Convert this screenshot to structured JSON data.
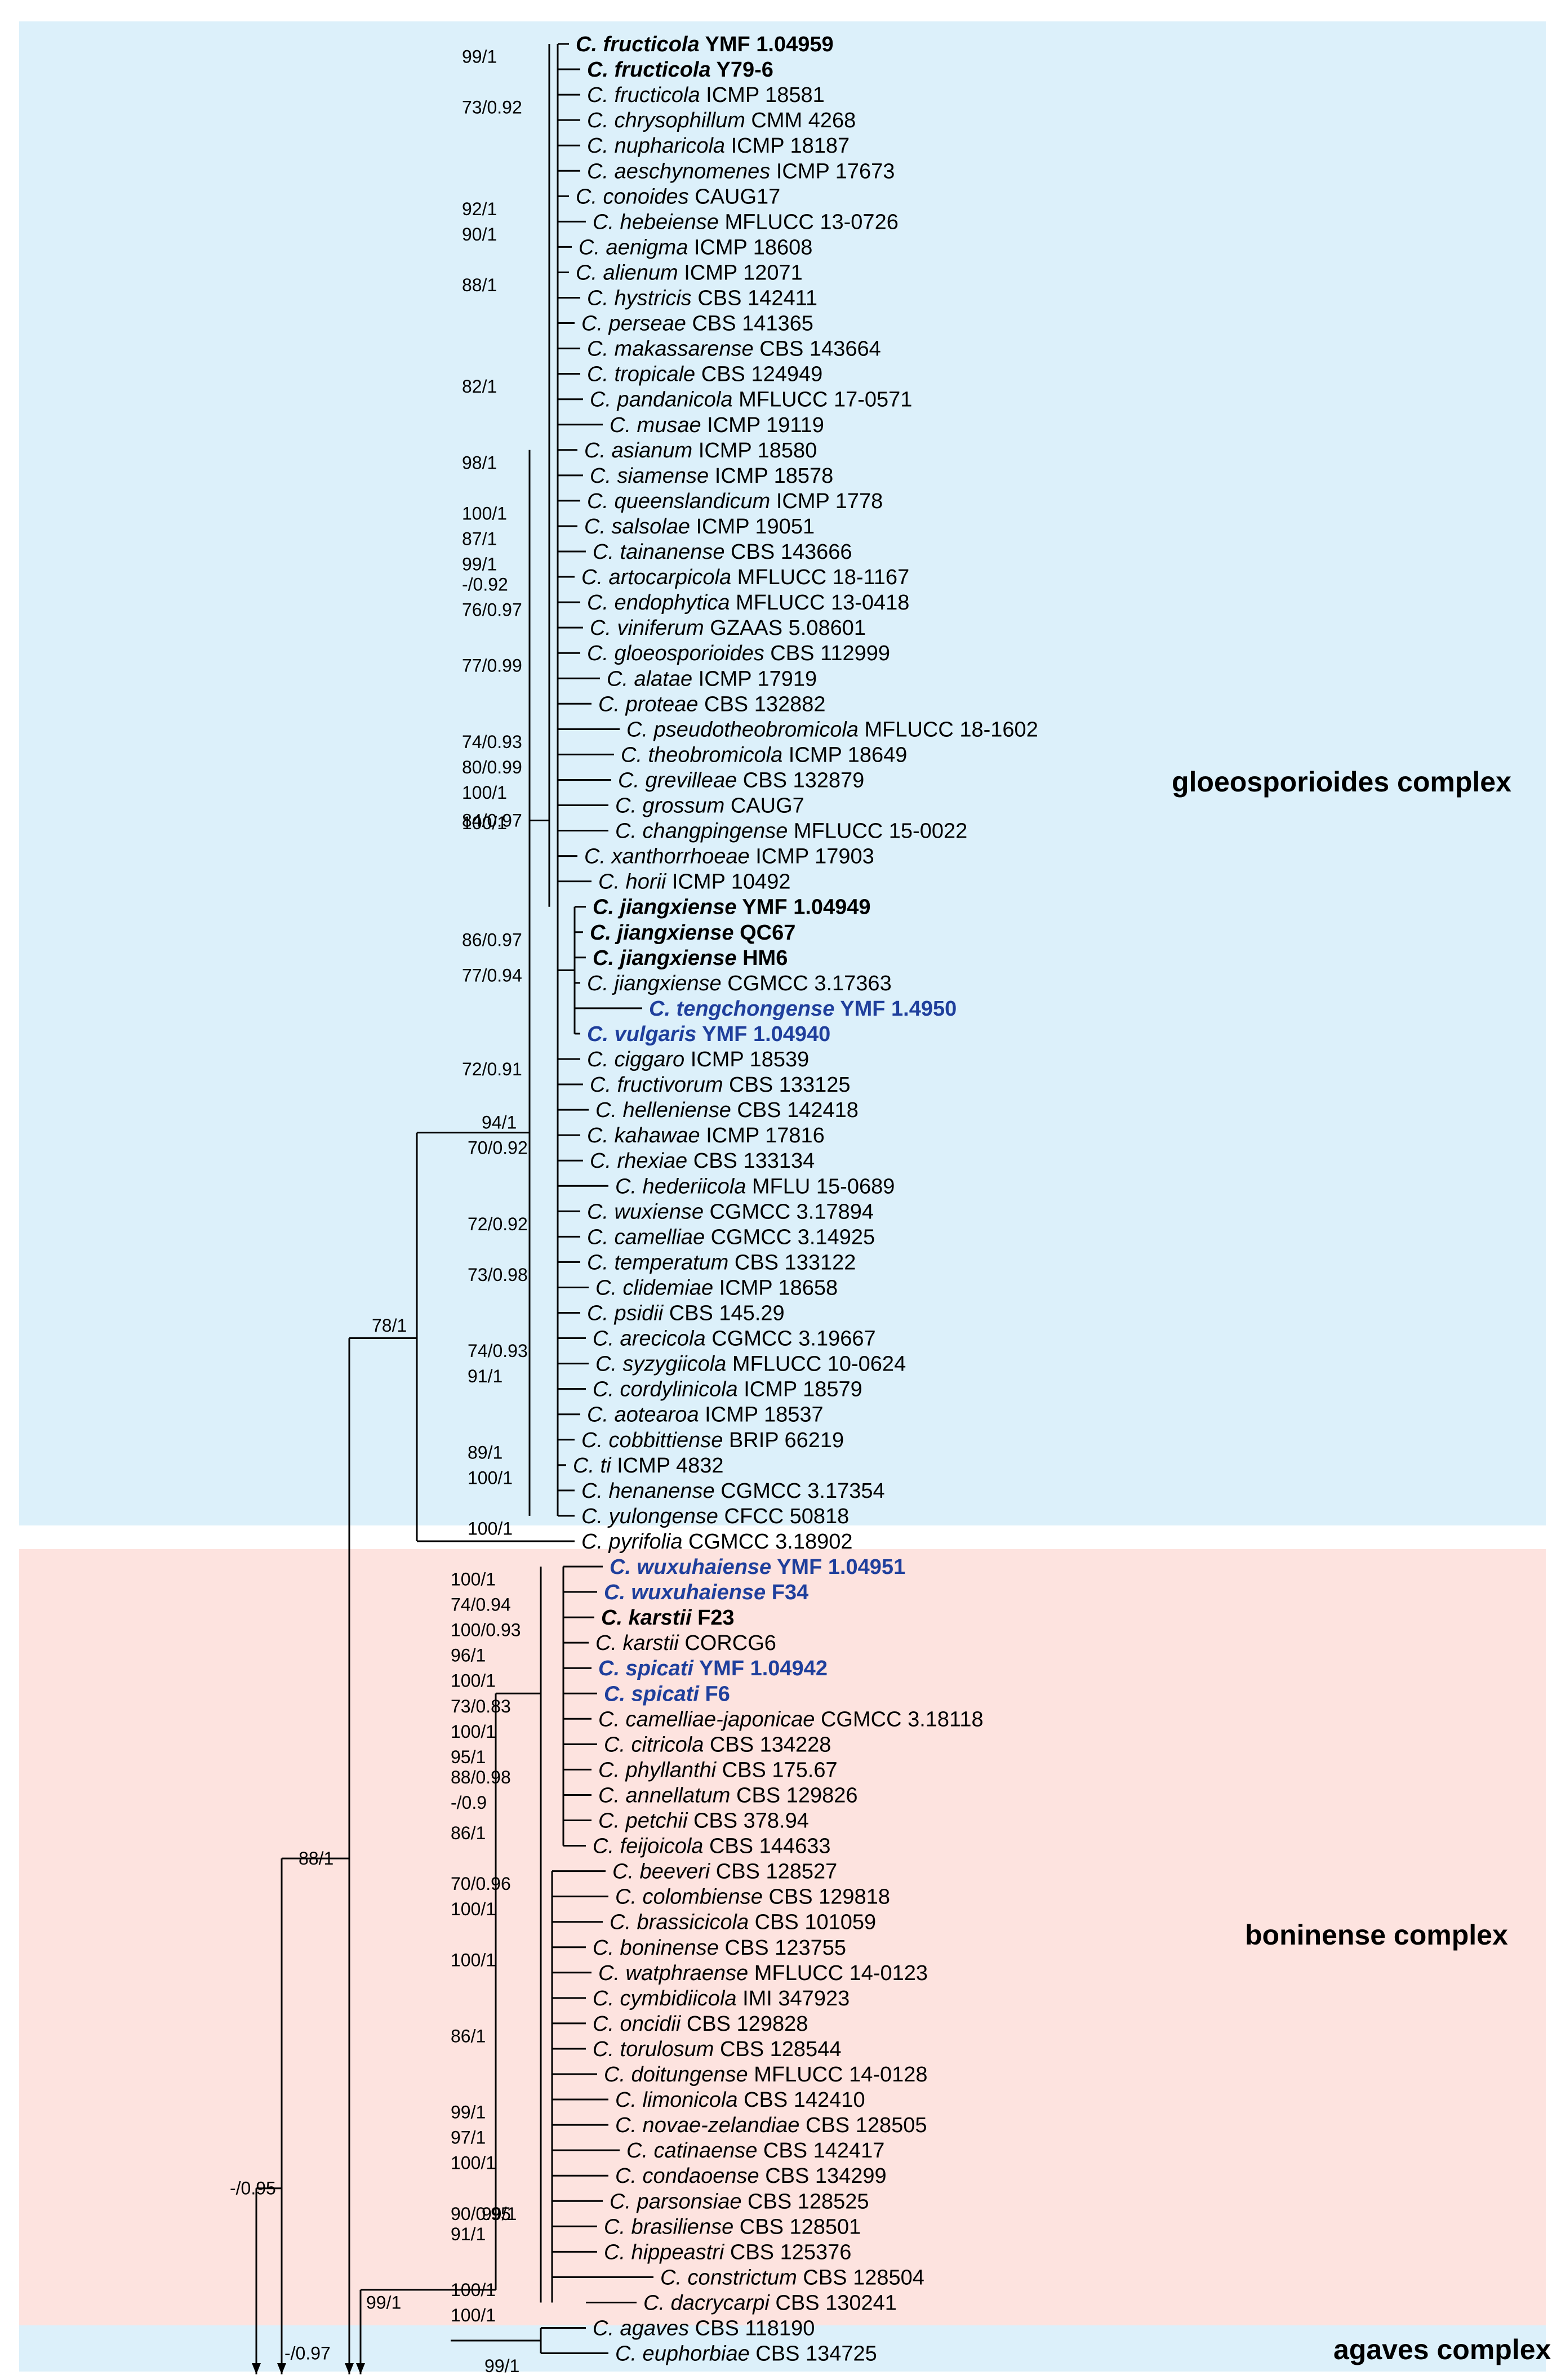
{
  "colors": {
    "gloeo_bg": "#dcf0fa",
    "boni_bg": "#fde3df",
    "agaves_bg": "#dcf0fa",
    "accent_blue": "#1f3f9c"
  },
  "complexes": {
    "gloeo": "gloeosporioides complex",
    "boni": "boninense complex",
    "agaves": "agaves complex"
  },
  "taxa": [
    {
      "g": "C.",
      "sp": "fructicola",
      "st": "YMF 1.04959",
      "s": "bold"
    },
    {
      "g": "C.",
      "sp": "fructicola",
      "st": "Y79-6",
      "s": "bold"
    },
    {
      "g": "C.",
      "sp": "fructicola",
      "st": "ICMP 18581",
      "s": ""
    },
    {
      "g": "C.",
      "sp": "chrysophillum",
      "st": "CMM 4268",
      "s": ""
    },
    {
      "g": "C.",
      "sp": "nupharicola",
      "st": "ICMP 18187",
      "s": ""
    },
    {
      "g": "C.",
      "sp": "aeschynomenes",
      "st": "ICMP 17673",
      "s": ""
    },
    {
      "g": "C.",
      "sp": "conoides",
      "st": "CAUG17",
      "s": ""
    },
    {
      "g": "C.",
      "sp": "hebeiense",
      "st": "MFLUCC 13-0726",
      "s": ""
    },
    {
      "g": "C.",
      "sp": "aenigma",
      "st": "ICMP 18608",
      "s": ""
    },
    {
      "g": "C.",
      "sp": "alienum",
      "st": "ICMP 12071",
      "s": ""
    },
    {
      "g": "C.",
      "sp": "hystricis",
      "st": "CBS 142411",
      "s": ""
    },
    {
      "g": "C.",
      "sp": "perseae",
      "st": "CBS 141365",
      "s": ""
    },
    {
      "g": "C.",
      "sp": "makassarense",
      "st": "CBS 143664",
      "s": ""
    },
    {
      "g": "C.",
      "sp": "tropicale",
      "st": "CBS 124949",
      "s": ""
    },
    {
      "g": "C.",
      "sp": "pandanicola",
      "st": "MFLUCC 17-0571",
      "s": ""
    },
    {
      "g": "C.",
      "sp": "musae",
      "st": "ICMP 19119",
      "s": ""
    },
    {
      "g": "C.",
      "sp": "asianum",
      "st": "ICMP 18580",
      "s": ""
    },
    {
      "g": "C.",
      "sp": "siamense",
      "st": "ICMP 18578",
      "s": ""
    },
    {
      "g": "C.",
      "sp": "queenslandicum",
      "st": "ICMP 1778",
      "s": ""
    },
    {
      "g": "C.",
      "sp": "salsolae",
      "st": "ICMP 19051",
      "s": ""
    },
    {
      "g": "C.",
      "sp": "tainanense",
      "st": "CBS 143666",
      "s": ""
    },
    {
      "g": "C.",
      "sp": "artocarpicola",
      "st": "MFLUCC 18-1167",
      "s": ""
    },
    {
      "g": "C.",
      "sp": "endophytica",
      "st": "MFLUCC 13-0418",
      "s": ""
    },
    {
      "g": "C.",
      "sp": "viniferum",
      "st": "GZAAS 5.08601",
      "s": ""
    },
    {
      "g": "C.",
      "sp": "gloeosporioides",
      "st": "CBS 112999",
      "s": ""
    },
    {
      "g": "C.",
      "sp": "alatae",
      "st": "ICMP 17919",
      "s": ""
    },
    {
      "g": "C.",
      "sp": "proteae",
      "st": "CBS 132882",
      "s": ""
    },
    {
      "g": "C.",
      "sp": "pseudotheobromicola",
      "st": "MFLUCC 18-1602",
      "s": ""
    },
    {
      "g": "C.",
      "sp": "theobromicola",
      "st": "ICMP 18649",
      "s": ""
    },
    {
      "g": "C.",
      "sp": "grevilleae",
      "st": "CBS 132879",
      "s": ""
    },
    {
      "g": "C.",
      "sp": "grossum",
      "st": "CAUG7",
      "s": ""
    },
    {
      "g": "C.",
      "sp": "changpingense",
      "st": "MFLUCC 15-0022",
      "s": ""
    },
    {
      "g": "C.",
      "sp": "xanthorrhoeae",
      "st": "ICMP 17903",
      "s": ""
    },
    {
      "g": "C.",
      "sp": "horii",
      "st": "ICMP 10492",
      "s": ""
    },
    {
      "g": "C.",
      "sp": "jiangxiense",
      "st": "YMF 1.04949",
      "s": "bold"
    },
    {
      "g": "C.",
      "sp": "jiangxiense",
      "st": "QC67",
      "s": "bold"
    },
    {
      "g": "C.",
      "sp": "jiangxiense",
      "st": "HM6",
      "s": "bold"
    },
    {
      "g": "C.",
      "sp": "jiangxiense",
      "st": "CGMCC 3.17363",
      "s": ""
    },
    {
      "g": "C.",
      "sp": "tengchongense",
      "st": "YMF 1.4950",
      "s": "blue"
    },
    {
      "g": "C.",
      "sp": "vulgaris",
      "st": "YMF 1.04940",
      "s": "blue"
    },
    {
      "g": "C.",
      "sp": "ciggaro",
      "st": "ICMP 18539",
      "s": ""
    },
    {
      "g": "C.",
      "sp": "fructivorum",
      "st": "CBS 133125",
      "s": ""
    },
    {
      "g": "C.",
      "sp": "helleniense",
      "st": "CBS 142418",
      "s": ""
    },
    {
      "g": "C.",
      "sp": "kahawae",
      "st": "ICMP 17816",
      "s": ""
    },
    {
      "g": "C.",
      "sp": "rhexiae",
      "st": "CBS 133134",
      "s": ""
    },
    {
      "g": "C.",
      "sp": "hederiicola",
      "st": "MFLU 15-0689",
      "s": ""
    },
    {
      "g": "C.",
      "sp": "wuxiense",
      "st": "CGMCC 3.17894",
      "s": ""
    },
    {
      "g": "C.",
      "sp": "camelliae",
      "st": "CGMCC 3.14925",
      "s": ""
    },
    {
      "g": "C.",
      "sp": "temperatum",
      "st": "CBS 133122",
      "s": ""
    },
    {
      "g": "C.",
      "sp": "clidemiae",
      "st": "ICMP 18658",
      "s": ""
    },
    {
      "g": "C.",
      "sp": "psidii",
      "st": "CBS 145.29",
      "s": ""
    },
    {
      "g": "C.",
      "sp": "arecicola",
      "st": "CGMCC 3.19667",
      "s": ""
    },
    {
      "g": "C.",
      "sp": "syzygiicola",
      "st": "MFLUCC 10-0624",
      "s": ""
    },
    {
      "g": "C.",
      "sp": "cordylinicola",
      "st": "ICMP 18579",
      "s": ""
    },
    {
      "g": "C.",
      "sp": "aotearoa",
      "st": "ICMP 18537",
      "s": ""
    },
    {
      "g": "C.",
      "sp": "cobbittiense",
      "st": "BRIP 66219",
      "s": ""
    },
    {
      "g": "C.",
      "sp": "ti",
      "st": "ICMP 4832",
      "s": ""
    },
    {
      "g": "C.",
      "sp": "henanense",
      "st": "CGMCC 3.17354",
      "s": ""
    },
    {
      "g": "C.",
      "sp": "yulongense",
      "st": "CFCC 50818",
      "s": ""
    },
    {
      "g": "C.",
      "sp": "pyrifolia",
      "st": "CGMCC 3.18902",
      "s": ""
    },
    {
      "g": "C.",
      "sp": "wuxuhaiense",
      "st": "YMF 1.04951",
      "s": "blue"
    },
    {
      "g": "C.",
      "sp": "wuxuhaiense",
      "st": "F34",
      "s": "blue"
    },
    {
      "g": "C.",
      "sp": "karstii",
      "st": "F23",
      "s": "bold"
    },
    {
      "g": "C.",
      "sp": "karstii",
      "st": "CORCG6",
      "s": ""
    },
    {
      "g": "C.",
      "sp": "spicati",
      "st": "YMF 1.04942",
      "s": "blue"
    },
    {
      "g": "C.",
      "sp": "spicati",
      "st": "F6",
      "s": "blue"
    },
    {
      "g": "C.",
      "sp": "camelliae-japonicae",
      "st": "CGMCC 3.18118",
      "s": ""
    },
    {
      "g": "C.",
      "sp": "citricola",
      "st": "CBS 134228",
      "s": ""
    },
    {
      "g": "C.",
      "sp": "phyllanthi",
      "st": "CBS 175.67",
      "s": ""
    },
    {
      "g": "C.",
      "sp": "annellatum",
      "st": "CBS 129826",
      "s": ""
    },
    {
      "g": "C.",
      "sp": "petchii",
      "st": "CBS 378.94",
      "s": ""
    },
    {
      "g": "C.",
      "sp": "feijoicola",
      "st": "CBS 144633",
      "s": ""
    },
    {
      "g": "C.",
      "sp": "beeveri",
      "st": "CBS 128527",
      "s": ""
    },
    {
      "g": "C.",
      "sp": "colombiense",
      "st": "CBS 129818",
      "s": ""
    },
    {
      "g": "C.",
      "sp": "brassicicola",
      "st": "CBS 101059",
      "s": ""
    },
    {
      "g": "C.",
      "sp": "boninense",
      "st": "CBS 123755",
      "s": ""
    },
    {
      "g": "C.",
      "sp": "watphraense",
      "st": "MFLUCC 14-0123",
      "s": ""
    },
    {
      "g": "C.",
      "sp": "cymbidiicola",
      "st": "IMI 347923",
      "s": ""
    },
    {
      "g": "C.",
      "sp": "oncidii",
      "st": "CBS 129828",
      "s": ""
    },
    {
      "g": "C.",
      "sp": "torulosum",
      "st": "CBS 128544",
      "s": ""
    },
    {
      "g": "C.",
      "sp": "doitungense",
      "st": "MFLUCC 14-0128",
      "s": ""
    },
    {
      "g": "C.",
      "sp": "limonicola",
      "st": "CBS 142410",
      "s": ""
    },
    {
      "g": "C.",
      "sp": "novae-zelandiae",
      "st": "CBS 128505",
      "s": ""
    },
    {
      "g": "C.",
      "sp": "catinaense",
      "st": "CBS 142417",
      "s": ""
    },
    {
      "g": "C.",
      "sp": "condaoense",
      "st": "CBS 134299",
      "s": ""
    },
    {
      "g": "C.",
      "sp": "parsonsiae",
      "st": "CBS 128525",
      "s": ""
    },
    {
      "g": "C.",
      "sp": "brasiliense",
      "st": "CBS 128501",
      "s": ""
    },
    {
      "g": "C.",
      "sp": "hippeastri",
      "st": "CBS 125376",
      "s": ""
    },
    {
      "g": "C.",
      "sp": "constrictum",
      "st": "CBS 128504",
      "s": ""
    },
    {
      "g": "C.",
      "sp": "dacrycarpi",
      "st": "CBS 130241",
      "s": ""
    },
    {
      "g": "C.",
      "sp": "agaves",
      "st": "CBS 118190",
      "s": ""
    },
    {
      "g": "C.",
      "sp": "euphorbiae",
      "st": "CBS 134725",
      "s": ""
    }
  ],
  "supports": [
    {
      "t": "99/1",
      "row": 0.5
    },
    {
      "t": "73/0.92",
      "row": 2.5
    },
    {
      "t": "92/1",
      "row": 6.5
    },
    {
      "t": "90/1",
      "row": 7.5
    },
    {
      "t": "88/1",
      "row": 9.5
    },
    {
      "t": "82/1",
      "row": 13.5
    },
    {
      "t": "98/1",
      "row": 16.5
    },
    {
      "t": "100/1",
      "row": 18.5
    },
    {
      "t": "87/1",
      "row": 19.5
    },
    {
      "t": "99/1",
      "row": 20.5
    },
    {
      "t": "-/0.92",
      "row": 21.3
    },
    {
      "t": "76/0.97",
      "row": 22.3
    },
    {
      "t": "77/0.99",
      "row": 24.5
    },
    {
      "t": "74/0.93",
      "row": 27.5
    },
    {
      "t": "80/0.99",
      "row": 28.5
    },
    {
      "t": "100/1",
      "row": 29.5
    },
    {
      "t": "100/1",
      "row": 30.7
    },
    {
      "t": "84/0.97",
      "row": 30.6
    },
    {
      "t": "86/0.97",
      "row": 35.3
    },
    {
      "t": "77/0.94",
      "row": 36.7
    },
    {
      "t": "72/0.91",
      "row": 40.4
    },
    {
      "t": "94/1",
      "row": 42.5
    },
    {
      "t": "70/0.92",
      "row": 43.5
    },
    {
      "t": "72/0.92",
      "row": 46.5
    },
    {
      "t": "73/0.98",
      "row": 48.5
    },
    {
      "t": "74/0.93",
      "row": 51.5
    },
    {
      "t": "91/1",
      "row": 52.5
    },
    {
      "t": "78/1",
      "row": 50.5
    },
    {
      "t": "89/1",
      "row": 55.5
    },
    {
      "t": "100/1",
      "row": 56.5
    },
    {
      "t": "100/1",
      "row": 58.5
    },
    {
      "t": "100/1",
      "row": 60.5
    },
    {
      "t": "74/0.94",
      "row": 61.5
    },
    {
      "t": "100/0.93",
      "row": 62.5
    },
    {
      "t": "96/1",
      "row": 63.5
    },
    {
      "t": "100/1",
      "row": 64.5
    },
    {
      "t": "73/0.83",
      "row": 65.5
    },
    {
      "t": "100/1",
      "row": 66.5
    },
    {
      "t": "95/1",
      "row": 67.5
    },
    {
      "t": "88/0.98",
      "row": 68.3
    },
    {
      "t": "-/0.9",
      "row": 69.3
    },
    {
      "t": "86/1",
      "row": 70.5
    },
    {
      "t": "88/1",
      "row": 71.5
    },
    {
      "t": "70/0.96",
      "row": 72.5
    },
    {
      "t": "100/1",
      "row": 73.5
    },
    {
      "t": "100/1",
      "row": 75.5
    },
    {
      "t": "86/1",
      "row": 78.5
    },
    {
      "t": "99/1",
      "row": 81.5
    },
    {
      "t": "97/1",
      "row": 82.5
    },
    {
      "t": "100/1",
      "row": 83.5
    },
    {
      "t": "-/0.95",
      "row": 84.5
    },
    {
      "t": "90/0.95",
      "row": 85.5
    },
    {
      "t": "99/1",
      "row": 85.5
    },
    {
      "t": "91/1",
      "row": 86.3
    },
    {
      "t": "100/1",
      "row": 88.5
    },
    {
      "t": "99/1",
      "row": 89.0
    },
    {
      "t": "100/1",
      "row": 89.5
    },
    {
      "t": "-/0.97",
      "row": 91.0
    },
    {
      "t": "99/1",
      "row": 91.5
    }
  ]
}
